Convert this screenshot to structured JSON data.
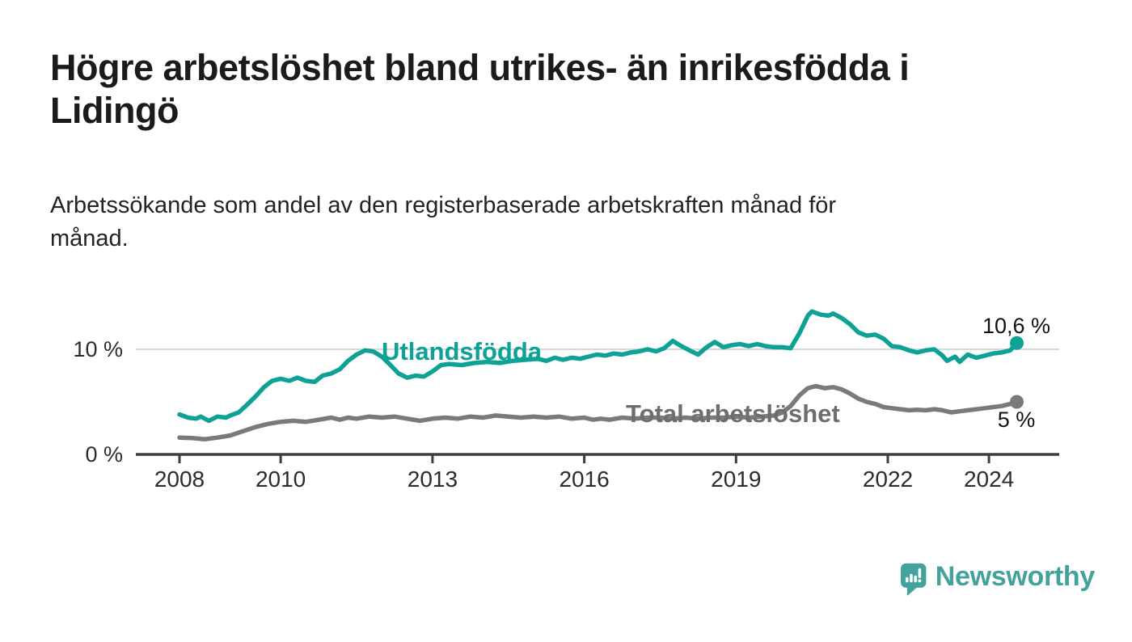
{
  "header": {
    "title": "Högre arbetslöshet bland utrikes- än inrikesfödda i Lidingö",
    "title_lines": [
      "Högre arbetslöshet bland utrikes- än inrikesfödda i",
      "Lidingö"
    ],
    "subtitle": "Arbetssökande som andel av den registerbaserade arbetskraften månad för månad.",
    "subtitle_lines": [
      "Arbetssökande som andel av den registerbaserade arbetskraften månad för",
      "månad."
    ]
  },
  "branding": {
    "logo_text": "Newsworthy",
    "logo_icon": "newsworthy-speech-bubble-bar-chart-icon",
    "logo_color": "#43a29c"
  },
  "colors": {
    "foreign_born_line": "#0da295",
    "total_line": "#7a7a7a",
    "total_label": "#6e6e6e",
    "axis": "#3d3d3d",
    "gridline": "#d8d8d8",
    "value_label": "#111111"
  },
  "chart_data": {
    "type": "line",
    "title": "Högre arbetslöshet bland utrikes- än inrikesfödda i Lidingö",
    "xlabel": "",
    "ylabel": "",
    "x_unit": "year (monthly series)",
    "y_unit": "% av registerbaserad arbetskraft",
    "xlim": [
      2007.1,
      2025.4
    ],
    "ylim": [
      0,
      14.8
    ],
    "grid": "horizontal, only at 10 %",
    "legend_position": "inline labels on lines",
    "x_ticks": [
      {
        "year": 2008,
        "label": "2008"
      },
      {
        "year": 2010,
        "label": "2010"
      },
      {
        "year": 2013,
        "label": "2013"
      },
      {
        "year": 2016,
        "label": "2016"
      },
      {
        "year": 2019,
        "label": "2019"
      },
      {
        "year": 2022,
        "label": "2022"
      },
      {
        "year": 2024,
        "label": "2024"
      }
    ],
    "y_ticks": [
      {
        "value": 10,
        "label": "10 %",
        "gridline": true
      },
      {
        "value": 0,
        "label": "0 %",
        "gridline": false
      }
    ],
    "series": [
      {
        "name": "Utlandsfödda",
        "label": "Utlandsfödda",
        "end_label": "10,6 %",
        "end_value": 10.6,
        "color": "#0da295",
        "points": [
          [
            2008.0,
            3.8
          ],
          [
            2008.17,
            3.5
          ],
          [
            2008.33,
            3.4
          ],
          [
            2008.42,
            3.6
          ],
          [
            2008.58,
            3.2
          ],
          [
            2008.75,
            3.6
          ],
          [
            2008.92,
            3.5
          ],
          [
            2009.0,
            3.7
          ],
          [
            2009.17,
            4.0
          ],
          [
            2009.33,
            4.7
          ],
          [
            2009.5,
            5.5
          ],
          [
            2009.67,
            6.4
          ],
          [
            2009.83,
            7.0
          ],
          [
            2010.0,
            7.2
          ],
          [
            2010.17,
            7.0
          ],
          [
            2010.33,
            7.3
          ],
          [
            2010.5,
            7.0
          ],
          [
            2010.67,
            6.9
          ],
          [
            2010.83,
            7.5
          ],
          [
            2011.0,
            7.7
          ],
          [
            2011.17,
            8.1
          ],
          [
            2011.33,
            8.9
          ],
          [
            2011.5,
            9.5
          ],
          [
            2011.67,
            9.9
          ],
          [
            2011.83,
            9.8
          ],
          [
            2012.0,
            9.3
          ],
          [
            2012.17,
            8.5
          ],
          [
            2012.33,
            7.7
          ],
          [
            2012.5,
            7.3
          ],
          [
            2012.67,
            7.5
          ],
          [
            2012.83,
            7.4
          ],
          [
            2013.0,
            7.9
          ],
          [
            2013.17,
            8.5
          ],
          [
            2013.33,
            8.6
          ],
          [
            2013.58,
            8.5
          ],
          [
            2013.83,
            8.7
          ],
          [
            2014.08,
            8.8
          ],
          [
            2014.33,
            8.7
          ],
          [
            2014.58,
            8.9
          ],
          [
            2014.83,
            9.0
          ],
          [
            2015.08,
            9.1
          ],
          [
            2015.25,
            8.9
          ],
          [
            2015.42,
            9.2
          ],
          [
            2015.58,
            9.0
          ],
          [
            2015.75,
            9.2
          ],
          [
            2015.92,
            9.1
          ],
          [
            2016.08,
            9.3
          ],
          [
            2016.25,
            9.5
          ],
          [
            2016.42,
            9.4
          ],
          [
            2016.58,
            9.6
          ],
          [
            2016.75,
            9.5
          ],
          [
            2016.92,
            9.7
          ],
          [
            2017.08,
            9.8
          ],
          [
            2017.25,
            10.0
          ],
          [
            2017.42,
            9.8
          ],
          [
            2017.58,
            10.1
          ],
          [
            2017.75,
            10.8
          ],
          [
            2017.92,
            10.3
          ],
          [
            2018.08,
            9.9
          ],
          [
            2018.25,
            9.5
          ],
          [
            2018.42,
            10.2
          ],
          [
            2018.58,
            10.7
          ],
          [
            2018.75,
            10.2
          ],
          [
            2018.92,
            10.4
          ],
          [
            2019.08,
            10.5
          ],
          [
            2019.25,
            10.3
          ],
          [
            2019.42,
            10.5
          ],
          [
            2019.58,
            10.3
          ],
          [
            2019.75,
            10.2
          ],
          [
            2019.92,
            10.2
          ],
          [
            2020.08,
            10.1
          ],
          [
            2020.25,
            11.5
          ],
          [
            2020.42,
            13.2
          ],
          [
            2020.5,
            13.6
          ],
          [
            2020.67,
            13.3
          ],
          [
            2020.83,
            13.2
          ],
          [
            2020.92,
            13.4
          ],
          [
            2021.08,
            13.0
          ],
          [
            2021.25,
            12.4
          ],
          [
            2021.42,
            11.6
          ],
          [
            2021.58,
            11.3
          ],
          [
            2021.75,
            11.4
          ],
          [
            2021.92,
            11.0
          ],
          [
            2022.08,
            10.3
          ],
          [
            2022.25,
            10.2
          ],
          [
            2022.42,
            9.9
          ],
          [
            2022.58,
            9.7
          ],
          [
            2022.75,
            9.9
          ],
          [
            2022.92,
            10.0
          ],
          [
            2023.08,
            9.4
          ],
          [
            2023.17,
            8.9
          ],
          [
            2023.33,
            9.3
          ],
          [
            2023.42,
            8.8
          ],
          [
            2023.58,
            9.5
          ],
          [
            2023.75,
            9.2
          ],
          [
            2023.92,
            9.4
          ],
          [
            2024.08,
            9.6
          ],
          [
            2024.25,
            9.7
          ],
          [
            2024.42,
            9.9
          ],
          [
            2024.55,
            10.6
          ]
        ]
      },
      {
        "name": "Total arbetslöshet",
        "label": "Total arbetslöshet",
        "end_label": "5 %",
        "end_value": 5,
        "color": "#7a7a7a",
        "points": [
          [
            2008.0,
            1.6
          ],
          [
            2008.25,
            1.55
          ],
          [
            2008.5,
            1.45
          ],
          [
            2008.75,
            1.6
          ],
          [
            2009.0,
            1.8
          ],
          [
            2009.25,
            2.2
          ],
          [
            2009.5,
            2.6
          ],
          [
            2009.75,
            2.9
          ],
          [
            2010.0,
            3.1
          ],
          [
            2010.25,
            3.2
          ],
          [
            2010.5,
            3.1
          ],
          [
            2010.75,
            3.3
          ],
          [
            2011.0,
            3.5
          ],
          [
            2011.17,
            3.3
          ],
          [
            2011.33,
            3.5
          ],
          [
            2011.5,
            3.4
          ],
          [
            2011.75,
            3.6
          ],
          [
            2012.0,
            3.5
          ],
          [
            2012.25,
            3.6
          ],
          [
            2012.5,
            3.4
          ],
          [
            2012.75,
            3.2
          ],
          [
            2013.0,
            3.4
          ],
          [
            2013.25,
            3.5
          ],
          [
            2013.5,
            3.4
          ],
          [
            2013.75,
            3.6
          ],
          [
            2014.0,
            3.5
          ],
          [
            2014.25,
            3.7
          ],
          [
            2014.5,
            3.6
          ],
          [
            2014.75,
            3.5
          ],
          [
            2015.0,
            3.6
          ],
          [
            2015.25,
            3.5
          ],
          [
            2015.5,
            3.6
          ],
          [
            2015.75,
            3.4
          ],
          [
            2016.0,
            3.5
          ],
          [
            2016.17,
            3.3
          ],
          [
            2016.33,
            3.4
          ],
          [
            2016.5,
            3.3
          ],
          [
            2016.75,
            3.5
          ],
          [
            2017.0,
            3.4
          ],
          [
            2017.25,
            3.5
          ],
          [
            2017.5,
            3.5
          ],
          [
            2017.75,
            3.4
          ],
          [
            2018.0,
            3.5
          ],
          [
            2018.25,
            3.4
          ],
          [
            2018.5,
            3.5
          ],
          [
            2018.75,
            3.5
          ],
          [
            2019.0,
            3.6
          ],
          [
            2019.25,
            3.5
          ],
          [
            2019.5,
            3.6
          ],
          [
            2019.75,
            3.7
          ],
          [
            2019.92,
            4.0
          ],
          [
            2020.08,
            4.6
          ],
          [
            2020.25,
            5.6
          ],
          [
            2020.42,
            6.3
          ],
          [
            2020.58,
            6.5
          ],
          [
            2020.75,
            6.3
          ],
          [
            2020.92,
            6.4
          ],
          [
            2021.08,
            6.2
          ],
          [
            2021.25,
            5.8
          ],
          [
            2021.42,
            5.3
          ],
          [
            2021.58,
            5.0
          ],
          [
            2021.75,
            4.8
          ],
          [
            2021.92,
            4.5
          ],
          [
            2022.08,
            4.4
          ],
          [
            2022.25,
            4.3
          ],
          [
            2022.42,
            4.2
          ],
          [
            2022.58,
            4.25
          ],
          [
            2022.75,
            4.2
          ],
          [
            2022.92,
            4.3
          ],
          [
            2023.08,
            4.2
          ],
          [
            2023.25,
            4.0
          ],
          [
            2023.42,
            4.1
          ],
          [
            2023.58,
            4.2
          ],
          [
            2023.75,
            4.3
          ],
          [
            2023.92,
            4.4
          ],
          [
            2024.08,
            4.5
          ],
          [
            2024.25,
            4.6
          ],
          [
            2024.42,
            4.8
          ],
          [
            2024.55,
            5.0
          ]
        ]
      }
    ]
  }
}
